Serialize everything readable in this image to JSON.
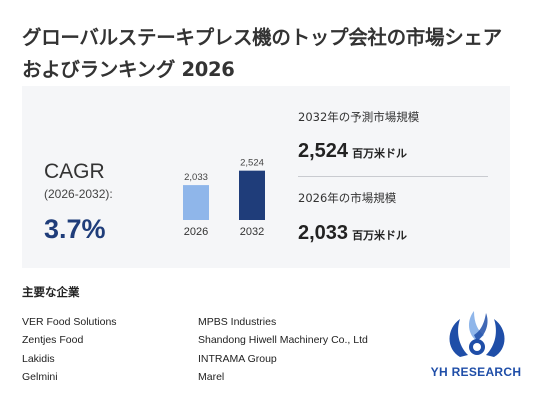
{
  "title": "グローバルステーキプレス機のトップ会社の市場シェアおよびランキング 2026",
  "cagr": {
    "label": "CAGR",
    "period": "(2026-2032):",
    "value": "3.7%"
  },
  "chart_data": {
    "type": "bar",
    "categories": [
      "2026",
      "2032"
    ],
    "values": [
      2033,
      2524
    ],
    "value_labels": [
      "2,033",
      "2,524"
    ],
    "colors": [
      "#8fb6ea",
      "#1f3d7a"
    ],
    "ylim": [
      0,
      2600
    ]
  },
  "stats": {
    "forecast_label": "2032年の予測市場規模",
    "forecast_value": "2,524",
    "forecast_unit": "百万米ドル",
    "current_label": "2026年の市場規模",
    "current_value": "2,033",
    "current_unit": "百万米ドル"
  },
  "companies": {
    "title": "主要な企業",
    "left": [
      "VER Food Solutions",
      "Zentjes Food",
      "Lakidis",
      "Gelmini"
    ],
    "right": [
      "MPBS Industries",
      "Shandong Hiwell Machinery Co., Ltd",
      "INTRAMA Group",
      "Marel"
    ]
  },
  "logo": {
    "text": "YH RESEARCH",
    "icon": "yh-research-logo-icon"
  }
}
